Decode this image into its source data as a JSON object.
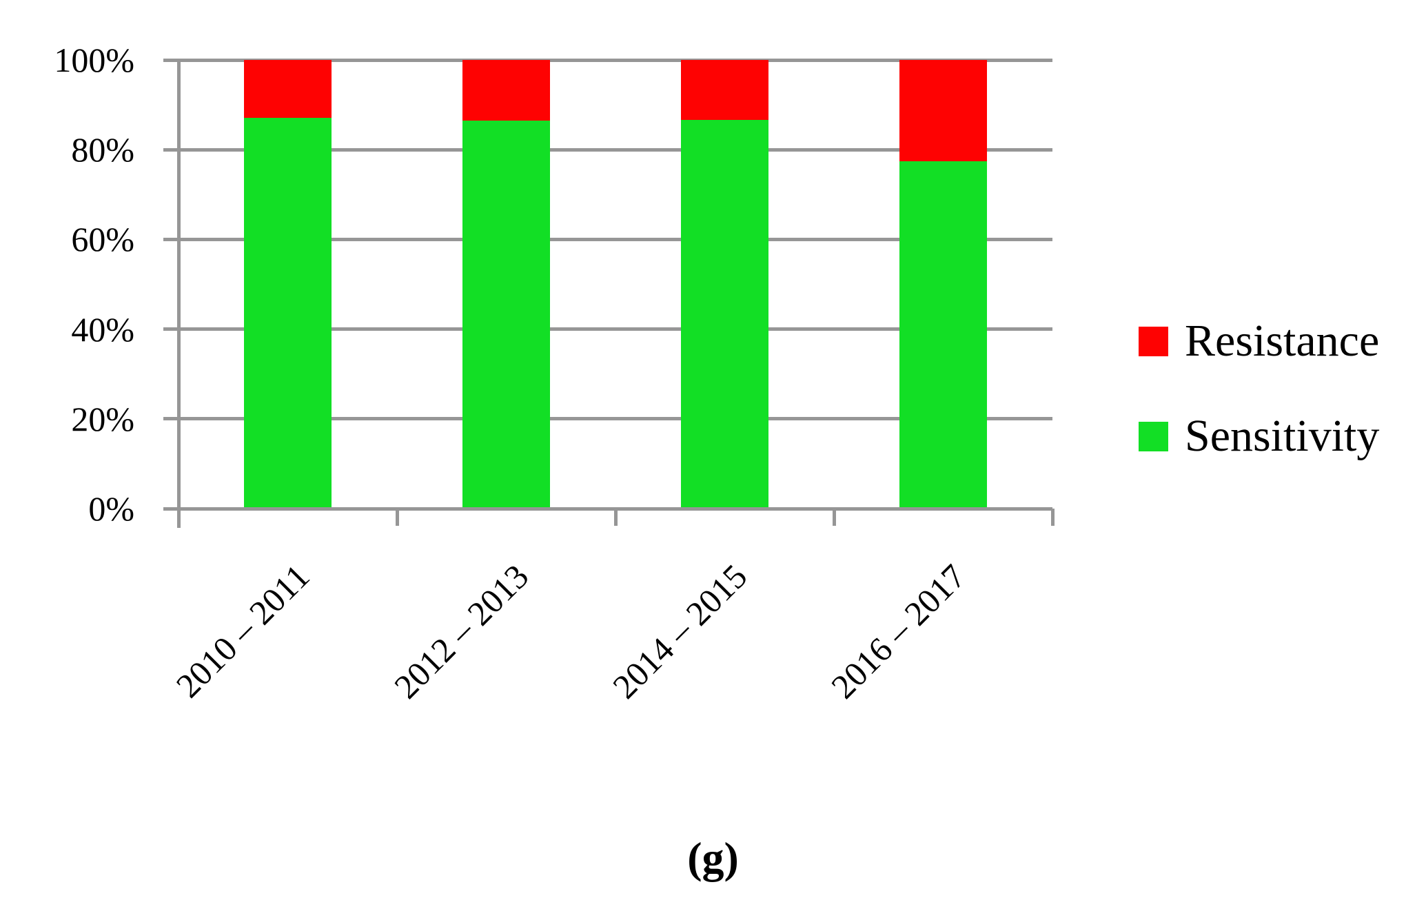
{
  "figure": {
    "caption": "(g)"
  },
  "chart_data": {
    "type": "bar",
    "stacked": true,
    "title": "",
    "xlabel": "",
    "ylabel": "",
    "categories": [
      "2010 – 2011",
      "2012 – 2013",
      "2014 – 2015",
      "2016 – 2017"
    ],
    "series": [
      {
        "name": "Sensitivity",
        "color": "#12df25",
        "values": [
          87.1,
          86.4,
          86.6,
          77.4
        ]
      },
      {
        "name": "Resistance",
        "color": "#fe0202",
        "values": [
          12.9,
          13.6,
          13.4,
          22.6
        ]
      }
    ],
    "ylim": [
      0,
      100
    ],
    "yticks": [
      {
        "value": 100,
        "label": "100%"
      },
      {
        "value": 80,
        "label": "80%"
      },
      {
        "value": 60,
        "label": "60%"
      },
      {
        "value": 40,
        "label": "40%"
      },
      {
        "value": 20,
        "label": "20%"
      },
      {
        "value": 0,
        "label": "0%"
      }
    ],
    "grid": "horizontal",
    "gridline_color": "#969696",
    "x_tick_label_rotation_deg": 45,
    "legend": {
      "position": "right",
      "entries": [
        {
          "label": "Resistance",
          "color": "#fe0202"
        },
        {
          "label": "Sensitivity",
          "color": "#12df25"
        }
      ]
    }
  }
}
